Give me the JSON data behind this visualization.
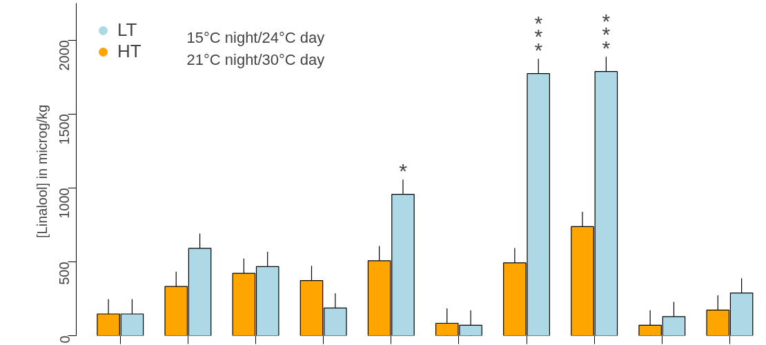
{
  "chart_data": {
    "type": "bar",
    "ylabel": "[Linalool]  in microg/kg",
    "categories": [
      null,
      null,
      null,
      null,
      null,
      null,
      null,
      null,
      null,
      null
    ],
    "ylim": [
      0,
      2250
    ],
    "yticks": [
      0,
      500,
      1000,
      1500,
      2000
    ],
    "series": [
      {
        "name": "HT",
        "color": "#ffa500",
        "values": [
          147,
          333,
          422,
          373,
          507,
          84,
          493,
          738,
          71,
          173
        ],
        "errors": [
          100,
          100,
          100,
          100,
          100,
          100,
          100,
          100,
          100,
          100
        ]
      },
      {
        "name": "LT",
        "color": "#add8e6",
        "values": [
          147,
          591,
          467,
          187,
          956,
          71,
          1773,
          1787,
          129,
          289
        ],
        "errors": [
          100,
          100,
          100,
          100,
          100,
          100,
          100,
          100,
          100,
          100
        ],
        "value_labels": [
          null,
          null,
          null,
          null,
          "*",
          null,
          "***",
          "***",
          null,
          null
        ]
      }
    ],
    "annotations": [
      "15°C night/24°C day",
      "21°C night/30°C day"
    ],
    "legend": "top left",
    "grid": false
  }
}
